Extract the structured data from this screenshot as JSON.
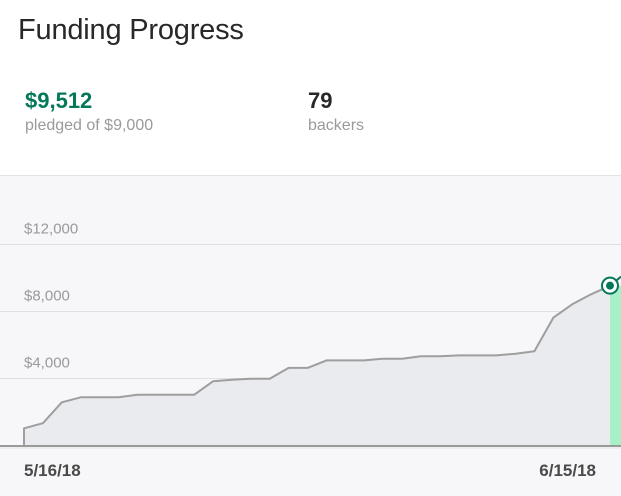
{
  "header": {
    "title": "Funding Progress"
  },
  "stats": {
    "pledged_value": "$9,512",
    "pledged_label": "pledged of $9,000",
    "backers_value": "79",
    "backers_label": "backers"
  },
  "colors": {
    "accent": "#05785a",
    "goal_bar": "#a8f0c8",
    "line": "#9e9e9e",
    "area": "#eaebef"
  },
  "chart_data": {
    "type": "area",
    "title": "",
    "xlabel": "",
    "ylabel": "",
    "x_tick_labels": [
      "5/16/18",
      "6/15/18"
    ],
    "y_tick_labels": [
      "$4,000",
      "$8,000",
      "$12,000"
    ],
    "y_ticks": [
      4000,
      8000,
      12000
    ],
    "ylim": [
      0,
      14000
    ],
    "grid": true,
    "series": [
      {
        "values": [
          1000,
          1300,
          2550,
          2850,
          2850,
          2850,
          3000,
          3000,
          3000,
          3000,
          3800,
          3900,
          3950,
          3950,
          4600,
          4600,
          5050,
          5050,
          5050,
          5150,
          5150,
          5300,
          5300,
          5350,
          5350,
          5350,
          5450,
          5600,
          7600,
          8400,
          9000,
          9512
        ]
      }
    ]
  }
}
